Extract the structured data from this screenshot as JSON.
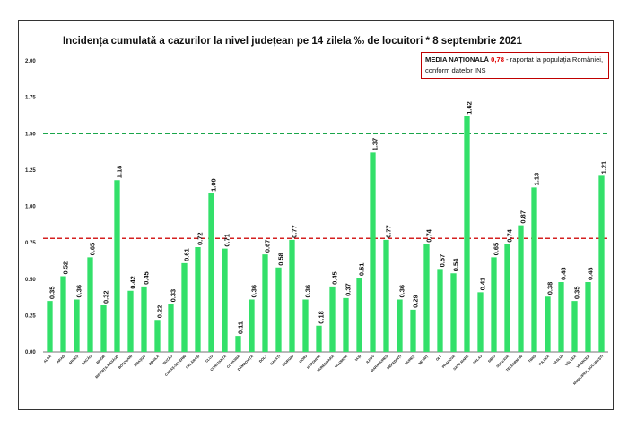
{
  "chart_data": {
    "type": "bar",
    "title": "Incidența cumulată a cazurilor la nivel județean pe 14 zilela ‰ de locuitori * 8 septembrie 2021",
    "xlabel": "",
    "ylabel": "",
    "ylim": [
      0,
      2
    ],
    "yticks": [
      "0.00",
      "0.25",
      "0.50",
      "0.75",
      "1.00",
      "1.25",
      "1.50",
      "1.75",
      "2.00"
    ],
    "grid": false,
    "bar_color": "#33e06a",
    "reference_lines": [
      {
        "value": 1.5,
        "color": "#1aa64a",
        "style": "dashed"
      },
      {
        "value": 0.78,
        "color": "#d42020",
        "style": "dashed"
      }
    ],
    "categories": [
      "ALBA",
      "ARAD",
      "ARGEȘ",
      "BACĂU",
      "BIHOR",
      "BISTRIȚA-NĂSĂUD",
      "BOTOȘANI",
      "BRAȘOV",
      "BRĂILA",
      "BUZĂU",
      "CARAȘ-SEVERIN",
      "CĂLĂRAȘI",
      "CLUJ",
      "CONSTANȚA",
      "COVASNA",
      "DÂMBOVIȚA",
      "DOLJ",
      "GALAȚI",
      "GIURGIU",
      "GORJ",
      "HARGHITA",
      "HUNEDOARA",
      "IALOMIȚA",
      "IAȘI",
      "ILFOV",
      "MARAMUREȘ",
      "MEHEDINȚI",
      "MUREȘ",
      "NEAMȚ",
      "OLT",
      "PRAHOVA",
      "SATU MARE",
      "SĂLAJ",
      "SIBIU",
      "SUCEAVA",
      "TELEORMAN",
      "TIMIȘ",
      "TULCEA",
      "VASLUI",
      "VÂLCEA",
      "VRANCEA",
      "MUNICIPIUL BUCUREȘTI"
    ],
    "values": [
      0.35,
      0.52,
      0.36,
      0.65,
      0.32,
      1.18,
      0.42,
      0.45,
      0.22,
      0.33,
      0.61,
      0.72,
      1.09,
      0.71,
      0.11,
      0.36,
      0.67,
      0.58,
      0.77,
      0.36,
      0.18,
      0.45,
      0.37,
      0.51,
      1.37,
      0.77,
      0.36,
      0.29,
      0.74,
      0.57,
      0.54,
      1.62,
      0.41,
      0.65,
      0.74,
      0.87,
      1.13,
      0.38,
      0.48,
      0.35,
      0.48,
      1.21
    ],
    "value_labels": [
      "0.35",
      "0.52",
      "0.36",
      "0.65",
      "0.32",
      "1.18",
      "0.42",
      "0.45",
      "0.22",
      "0.33",
      "0.61",
      "0.72",
      "1.09",
      "0.71",
      "0.11",
      "0.36",
      "0.67",
      "0.58",
      "0.77",
      "0.36",
      "0.18",
      "0.45",
      "0.37",
      "0.51",
      "1.37",
      "0.77",
      "0.36",
      "0.29",
      "0.74",
      "0.57",
      "0.54",
      "1.62",
      "0.41",
      "0.65",
      "0.74",
      "0.87",
      "1.13",
      "0.38",
      "0.48",
      "0.35",
      "0.48",
      "1.21"
    ]
  },
  "info_box": {
    "label": "MEDIA NAȚIONALĂ",
    "value": "0,78",
    "text": "- raportat la populația României, conform datelor INS"
  }
}
